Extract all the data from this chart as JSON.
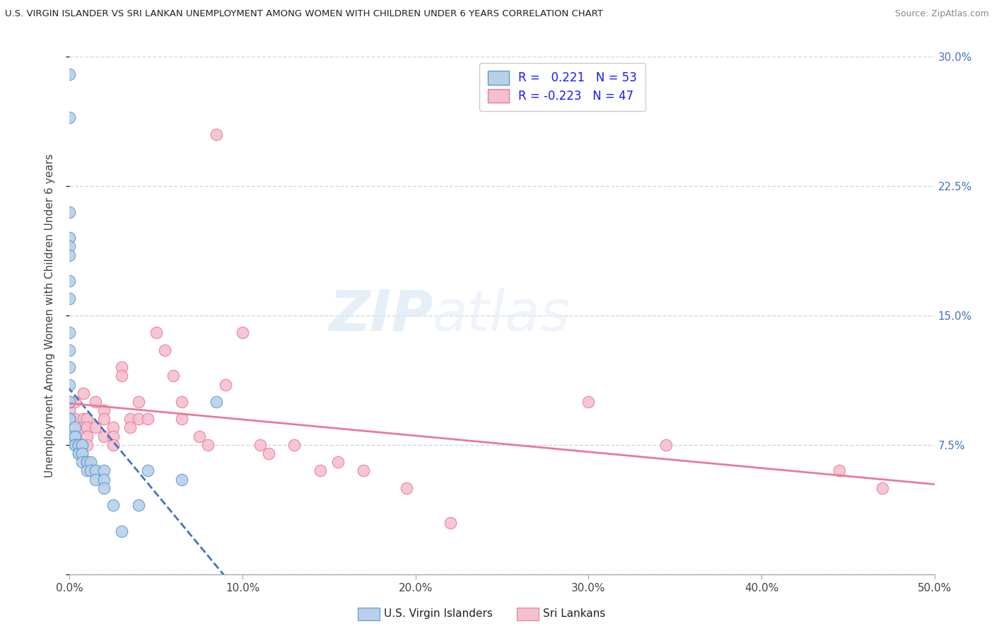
{
  "title": "U.S. VIRGIN ISLANDER VS SRI LANKAN UNEMPLOYMENT AMONG WOMEN WITH CHILDREN UNDER 6 YEARS CORRELATION CHART",
  "source": "Source: ZipAtlas.com",
  "ylabel": "Unemployment Among Women with Children Under 6 years",
  "xlim": [
    0.0,
    0.5
  ],
  "ylim": [
    0.0,
    0.3
  ],
  "xticks": [
    0.0,
    0.1,
    0.2,
    0.3,
    0.4,
    0.5
  ],
  "yticks": [
    0.0,
    0.075,
    0.15,
    0.225,
    0.3
  ],
  "xticklabels": [
    "0.0%",
    "10.0%",
    "20.0%",
    "30.0%",
    "40.0%",
    "50.0%"
  ],
  "yticklabels_right": [
    "",
    "7.5%",
    "15.0%",
    "22.5%",
    "30.0%"
  ],
  "blue_R": 0.221,
  "blue_N": 53,
  "pink_R": -0.223,
  "pink_N": 47,
  "blue_color": "#b8d0e8",
  "pink_color": "#f5c0cd",
  "blue_edge_color": "#5b9bd5",
  "pink_edge_color": "#e8799a",
  "blue_line_color": "#4472c4",
  "pink_line_color": "#e87a9a",
  "legend_label_blue": "U.S. Virgin Islanders",
  "legend_label_pink": "Sri Lankans",
  "watermark_zip": "ZIP",
  "watermark_atlas": "atlas",
  "background_color": "#ffffff",
  "grid_color": "#d0d8e4",
  "blue_scatter_x": [
    0.0,
    0.0,
    0.0,
    0.0,
    0.0,
    0.0,
    0.0,
    0.0,
    0.0,
    0.0,
    0.0,
    0.0,
    0.0,
    0.0,
    0.0,
    0.0,
    0.0,
    0.0,
    0.0,
    0.0,
    0.003,
    0.003,
    0.003,
    0.003,
    0.003,
    0.003,
    0.005,
    0.005,
    0.005,
    0.005,
    0.007,
    0.007,
    0.007,
    0.007,
    0.007,
    0.01,
    0.01,
    0.01,
    0.01,
    0.012,
    0.012,
    0.015,
    0.015,
    0.015,
    0.02,
    0.02,
    0.02,
    0.025,
    0.03,
    0.04,
    0.045,
    0.065,
    0.085
  ],
  "blue_scatter_y": [
    0.29,
    0.265,
    0.21,
    0.195,
    0.19,
    0.185,
    0.17,
    0.16,
    0.14,
    0.13,
    0.12,
    0.11,
    0.1,
    0.1,
    0.09,
    0.09,
    0.09,
    0.09,
    0.08,
    0.08,
    0.085,
    0.08,
    0.08,
    0.08,
    0.075,
    0.075,
    0.075,
    0.075,
    0.07,
    0.07,
    0.075,
    0.075,
    0.07,
    0.07,
    0.065,
    0.065,
    0.065,
    0.065,
    0.06,
    0.065,
    0.06,
    0.06,
    0.06,
    0.055,
    0.06,
    0.055,
    0.05,
    0.04,
    0.025,
    0.04,
    0.06,
    0.055,
    0.1
  ],
  "pink_scatter_x": [
    0.0,
    0.003,
    0.003,
    0.008,
    0.008,
    0.008,
    0.01,
    0.01,
    0.01,
    0.01,
    0.015,
    0.015,
    0.02,
    0.02,
    0.02,
    0.025,
    0.025,
    0.025,
    0.03,
    0.03,
    0.035,
    0.035,
    0.04,
    0.04,
    0.045,
    0.05,
    0.055,
    0.06,
    0.065,
    0.065,
    0.075,
    0.08,
    0.085,
    0.09,
    0.1,
    0.11,
    0.115,
    0.13,
    0.145,
    0.155,
    0.17,
    0.195,
    0.22,
    0.3,
    0.345,
    0.445,
    0.47
  ],
  "pink_scatter_y": [
    0.095,
    0.1,
    0.09,
    0.105,
    0.09,
    0.085,
    0.09,
    0.085,
    0.08,
    0.075,
    0.1,
    0.085,
    0.095,
    0.09,
    0.08,
    0.085,
    0.08,
    0.075,
    0.12,
    0.115,
    0.09,
    0.085,
    0.1,
    0.09,
    0.09,
    0.14,
    0.13,
    0.115,
    0.1,
    0.09,
    0.08,
    0.075,
    0.255,
    0.11,
    0.14,
    0.075,
    0.07,
    0.075,
    0.06,
    0.065,
    0.06,
    0.05,
    0.03,
    0.1,
    0.075,
    0.06,
    0.05
  ],
  "blue_trend_x": [
    -0.005,
    0.14
  ],
  "pink_trend_x": [
    -0.005,
    0.5
  ]
}
